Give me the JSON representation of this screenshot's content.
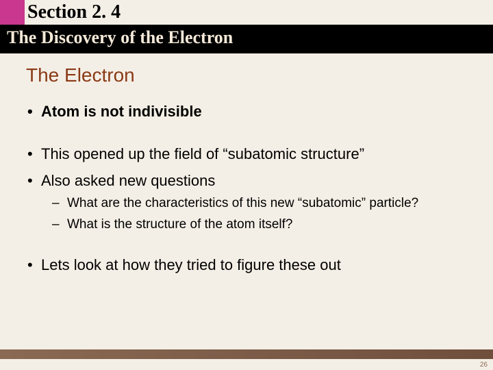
{
  "header": {
    "section_label": "Section 2. 4",
    "subtitle": "The Discovery of the Electron"
  },
  "slide": {
    "title": "The Electron",
    "bullets": {
      "b1": "Atom is not indivisible",
      "b2": "This opened up the field of “subatomic structure”",
      "b3": "Also asked new questions",
      "b4": "Lets look at how they tried to figure these out"
    },
    "sub_bullets": {
      "s1": "What are the characteristics of this new “subatomic” particle?",
      "s2": "What is the structure of the atom itself?"
    }
  },
  "page_number": "26",
  "colors": {
    "magenta": "#c9378e",
    "background": "#f4efe6",
    "title": "#8a3a16",
    "footer_gradient_start": "#8a6a54",
    "footer_gradient_end": "#6f4f3c"
  }
}
